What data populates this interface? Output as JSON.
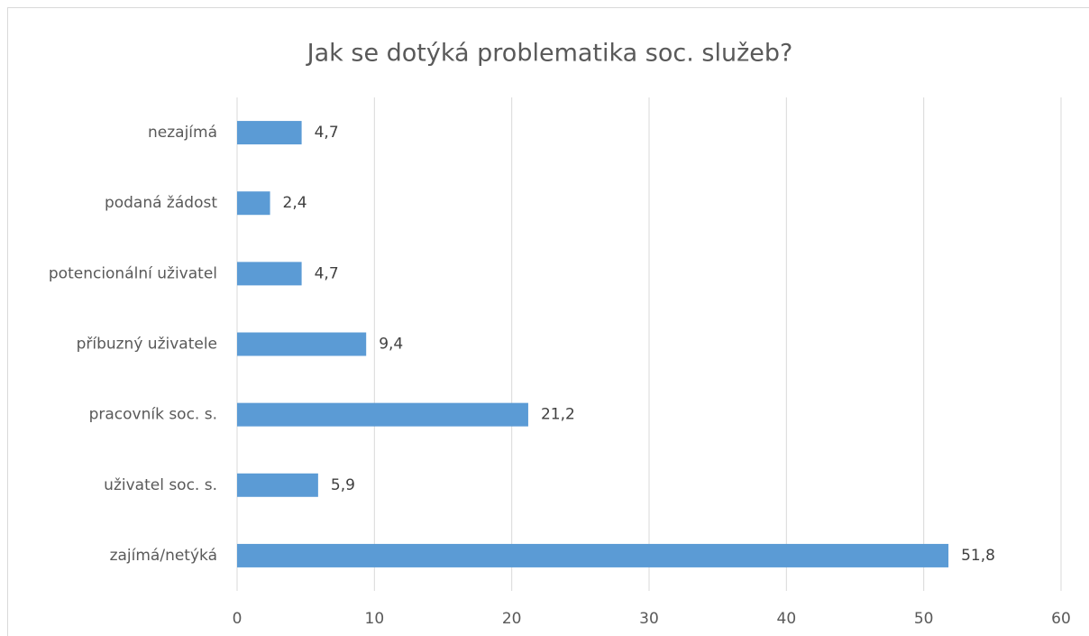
{
  "chart_data": {
    "type": "hbar",
    "title": "Jak se dotýká problematika soc. služeb?",
    "categories": [
      "nezajímá",
      "podaná žádost",
      "potencionální uživatel",
      "příbuzný uživatele",
      "pracovník soc. s.",
      "uživatel soc. s.",
      "zajímá/netýká"
    ],
    "values": [
      4.7,
      2.4,
      4.7,
      9.4,
      21.2,
      5.9,
      51.8
    ],
    "value_labels": [
      "4,7",
      "2,4",
      "4,7",
      "9,4",
      "21,2",
      "5,9",
      "51,8"
    ],
    "color": "#5b9bd5",
    "xlim": [
      0,
      60
    ],
    "xticks": [
      0,
      10,
      20,
      30,
      40,
      50,
      60
    ],
    "grid": true
  }
}
